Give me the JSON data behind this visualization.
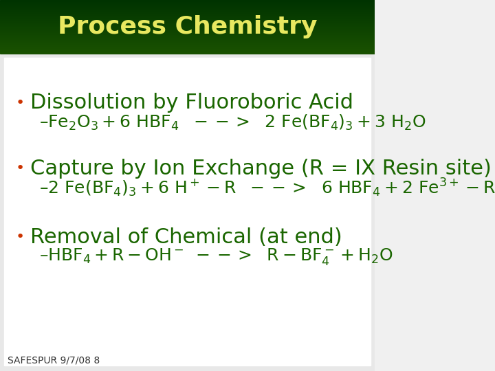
{
  "title": "Process Chemistry",
  "title_color": "#E8E860",
  "title_bg_color_top": "#1a5200",
  "title_bg_color_bottom": "#003300",
  "title_gradient_mid": "#2d6e00",
  "bg_color": "#f0f0f0",
  "content_bg": "#ffffff",
  "bullet_color": "#cc3300",
  "text_color": "#1a6600",
  "footer_text": "SAFESPUR 9/7/08 8",
  "bullet1_header": "Dissolution by Fluoroboric Acid",
  "bullet1_eq": "– Fe₂O₃ + 6 HBF₄   - - >   2 Fe(BF₄)₃ + 3 H₂O",
  "bullet2_header": "Capture by Ion Exchange (R = IX Resin site)",
  "bullet3_header": "Removal of Chemical (at end)",
  "header_fontsize": 22,
  "title_fontsize": 26,
  "eq_fontsize": 18,
  "footer_fontsize": 10
}
